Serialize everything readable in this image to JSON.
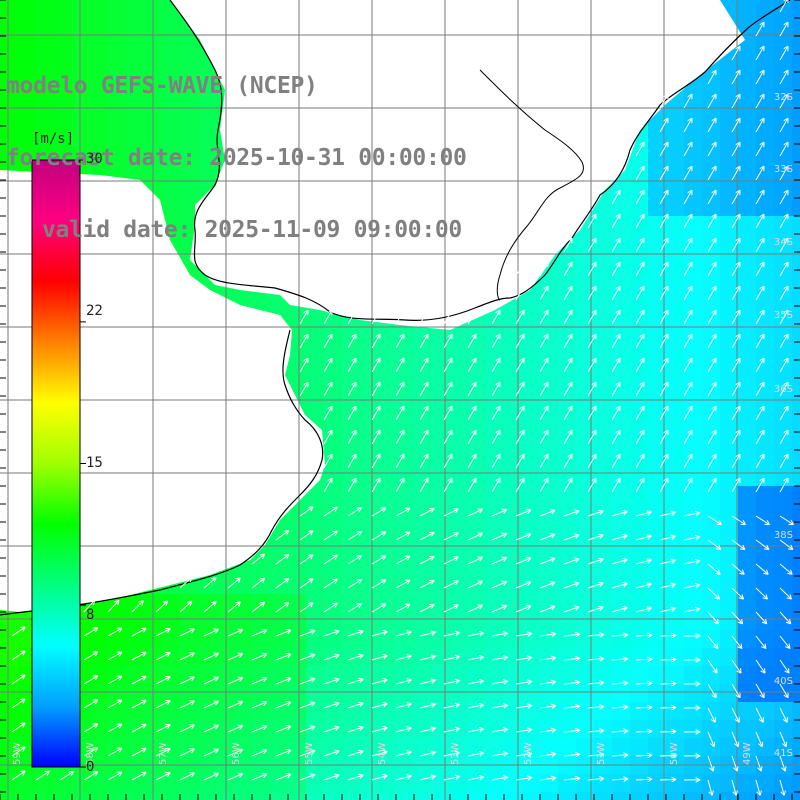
{
  "map": {
    "model_title": "modelo GEFS-WAVE (NCEP)",
    "forecast_date": "forecast date: 2025-10-31 00:00:00",
    "valid_date": "valid date: 2025-11-09 09:00:00",
    "lat_labels": [
      "32S",
      "33S",
      "34S",
      "35S",
      "36S",
      "38S",
      "40S",
      "41S"
    ],
    "lon_labels": [
      "59W",
      "58W",
      "57W",
      "56W",
      "55W",
      "54W",
      "53W",
      "52W",
      "51W",
      "50W",
      "49W"
    ],
    "colors": {
      "land": "#ffffff",
      "coast": "#000000",
      "grid": "#7a7a7a",
      "arrow": "#ffffff"
    }
  },
  "colorbar": {
    "unit": "[m/s]",
    "min": 0,
    "max": 30,
    "ticks": [
      "30",
      "22",
      "15",
      "8",
      "0"
    ],
    "tick_values": [
      30,
      22,
      15,
      8,
      0
    ],
    "stops": [
      "#0000ff",
      "#00a0ff",
      "#00ffff",
      "#00ff80",
      "#00ff00",
      "#a0ff00",
      "#ffff00",
      "#ff8000",
      "#ff0000",
      "#ff0080",
      "#c00080"
    ]
  }
}
